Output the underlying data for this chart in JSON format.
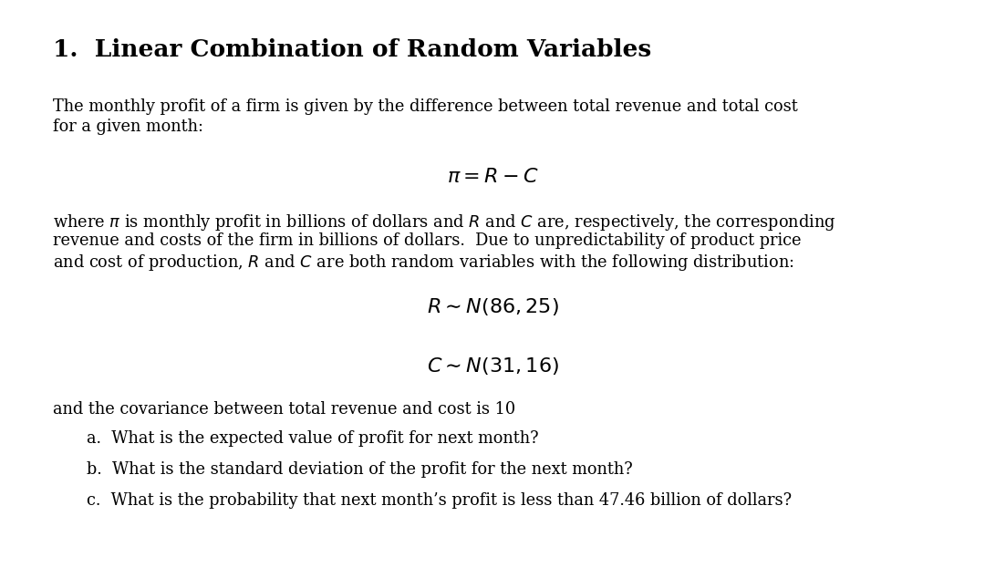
{
  "title": "1.  Linear Combination of Random Variables",
  "bg_color": "#ffffff",
  "text_color": "#000000",
  "title_fontsize": 19,
  "body_fontsize": 12.8,
  "math_fontsize": 14,
  "indent_fontsize": 12.8,
  "para1_l1": "The monthly profit of a firm is given by the difference between total revenue and total cost",
  "para1_l2": "for a given month:",
  "formula1": "$\\pi = R - C$",
  "para2_line1": "where $\\pi$ is monthly profit in billions of dollars and $R$ and $C$ are, respectively, the corresponding",
  "para2_line2": "revenue and costs of the firm in billions of dollars.  Due to unpredictability of product price",
  "para2_line3": "and cost of production, $R$ and $C$ are both random variables with the following distribution:",
  "formula2": "$R \\sim N(86, 25)$",
  "formula3": "$C \\sim N(31, 16)$",
  "para3": "and the covariance between total revenue and cost is 10",
  "qa": "a.  What is the expected value of profit for next month?",
  "qb": "b.  What is the standard deviation of the profit for the next month?",
  "qc": "c.  What is the probability that next month’s profit is less than 47.46 billion of dollars?"
}
